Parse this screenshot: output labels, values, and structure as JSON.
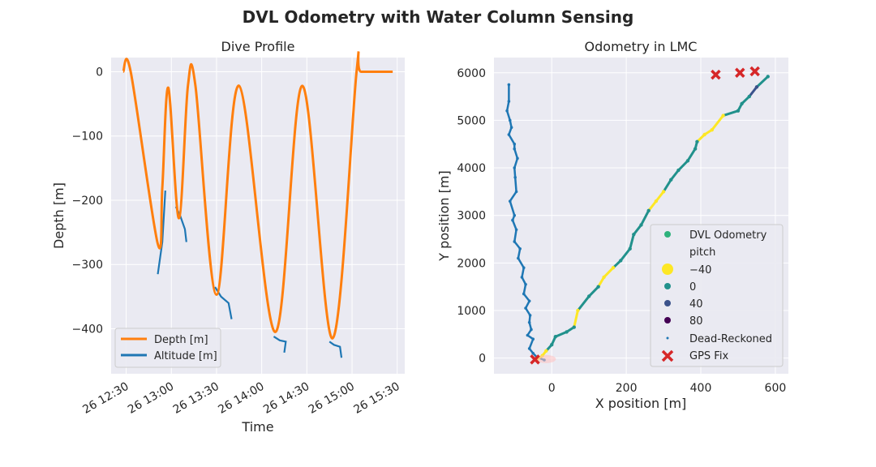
{
  "figure": {
    "title": "DVL Odometry with Water Column Sensing"
  },
  "chart_data": [
    {
      "type": "line",
      "title": "Dive Profile",
      "xlabel": "Time",
      "ylabel": "Depth [m]",
      "xlim": [
        "12:20",
        "15:35"
      ],
      "ylim": [
        -470,
        22
      ],
      "grid": true,
      "legend_placement": "lower-left",
      "xticks": [
        "12:30",
        "13:00",
        "13:30",
        "14:00",
        "14:30",
        "15:00",
        "15:30"
      ],
      "xtick_labels": [
        "26 12:30",
        "26 13:00",
        "26 13:30",
        "26 14:00",
        "26 14:30",
        "26 15:00",
        "26 15:30"
      ],
      "yticks": [
        0,
        -100,
        -200,
        -300,
        -400
      ],
      "yticks_labels": [
        "0",
        "−100",
        "−200",
        "−300",
        "−400"
      ],
      "colors": {
        "depth": "#ff7f0e",
        "altitude": "#1f77b4",
        "altitude_light": "#17becf"
      },
      "series": [
        {
          "name": "Depth [m]",
          "x": [
            "12:28",
            "12:33",
            "12:51",
            "12:54",
            "12:58",
            "13:05",
            "13:11",
            "13:16",
            "13:30",
            "13:45",
            "14:09",
            "14:27",
            "14:47",
            "15:03",
            "15:06",
            "15:27"
          ],
          "y": [
            0,
            0,
            -268,
            -180,
            -25,
            -228,
            -22,
            -22,
            -347,
            -22,
            -405,
            -22,
            -415,
            0,
            0,
            0
          ]
        },
        {
          "name": "Altitude [m]",
          "segments": [
            {
              "x": [
                "12:51",
                "12:54",
                "12:56"
              ],
              "y": [
                -315,
                -265,
                -185
              ]
            },
            {
              "x": [
                "13:03",
                "13:06",
                "13:09",
                "13:10"
              ],
              "y": [
                -210,
                -225,
                -245,
                -265
              ]
            },
            {
              "x": [
                "13:29",
                "13:33",
                "13:38",
                "13:40"
              ],
              "y": [
                -335,
                -350,
                -360,
                -385
              ]
            },
            {
              "x": [
                "14:08",
                "14:12",
                "14:16",
                "14:15"
              ],
              "y": [
                -412,
                -418,
                -420,
                -437
              ]
            },
            {
              "x": [
                "14:45",
                "14:48",
                "14:52",
                "14:53"
              ],
              "y": [
                -420,
                -425,
                -428,
                -445
              ]
            }
          ]
        }
      ]
    },
    {
      "type": "scatter",
      "title": "Odometry in LMC",
      "xlabel": "X position [m]",
      "ylabel": "Y position [m]",
      "xlim": [
        -155,
        635
      ],
      "ylim": [
        -330,
        6320
      ],
      "grid": true,
      "legend_placement": "lower-right",
      "xticks": [
        0,
        200,
        400,
        600
      ],
      "yticks": [
        0,
        1000,
        2000,
        3000,
        4000,
        5000,
        6000
      ],
      "legend": {
        "entries": [
          "DVL Odometry",
          "pitch",
          "−40",
          "0",
          "40",
          "80",
          "Dead-Reckoned",
          "GPS Fix"
        ]
      },
      "pitch_colors": {
        "-40": "#fde725",
        "0": "#21918c",
        "40": "#3b528b",
        "80": "#440154"
      },
      "colors": {
        "dead_reckoned": "#1f77b4",
        "gps": "#d62728",
        "dvl_dot": "#2eb27c"
      },
      "dead_reckoned": {
        "name": "Dead-Reckoned",
        "x": [
          -20,
          -40,
          -50,
          -60,
          -50,
          -65,
          -55,
          -60,
          -58,
          -70,
          -60,
          -75,
          -70,
          -80,
          -75,
          -90,
          -85,
          -100,
          -95,
          -105,
          -100,
          -112,
          -95,
          -98,
          -100,
          -92,
          -100,
          -100,
          -115,
          -108,
          -112,
          -120,
          -115,
          -115
        ],
        "y": [
          -40,
          20,
          100,
          200,
          400,
          480,
          600,
          750,
          900,
          1050,
          1200,
          1350,
          1550,
          1700,
          1900,
          2100,
          2300,
          2450,
          2700,
          2900,
          3000,
          3300,
          3500,
          3800,
          4000,
          4200,
          4400,
          4500,
          4700,
          4850,
          5000,
          5200,
          5400,
          5750
        ]
      },
      "dvl_odometry": {
        "name": "DVL Odometry",
        "x": [
          -40,
          -25,
          -15,
          0,
          10,
          40,
          60,
          70,
          100,
          125,
          140,
          165,
          185,
          210,
          220,
          240,
          260,
          280,
          300,
          320,
          340,
          365,
          385,
          390,
          410,
          430,
          460,
          500,
          510,
          530,
          550,
          580
        ],
        "y": [
          -30,
          50,
          150,
          280,
          450,
          550,
          650,
          1000,
          1300,
          1500,
          1700,
          1900,
          2050,
          2300,
          2600,
          2800,
          3100,
          3300,
          3500,
          3750,
          3950,
          4150,
          4400,
          4550,
          4700,
          4800,
          5100,
          5200,
          5350,
          5500,
          5700,
          5920
        ],
        "pitch": [
          -40,
          -40,
          -40,
          0,
          0,
          0,
          0,
          -40,
          0,
          0,
          -40,
          -40,
          0,
          0,
          0,
          0,
          0,
          -40,
          -40,
          0,
          0,
          0,
          0,
          0,
          -40,
          -40,
          -40,
          0,
          0,
          0,
          40,
          0
        ]
      },
      "gps_fix": {
        "name": "GPS Fix",
        "x": [
          -45,
          440,
          505,
          545
        ],
        "y": [
          -30,
          5960,
          6000,
          6030
        ]
      }
    }
  ]
}
